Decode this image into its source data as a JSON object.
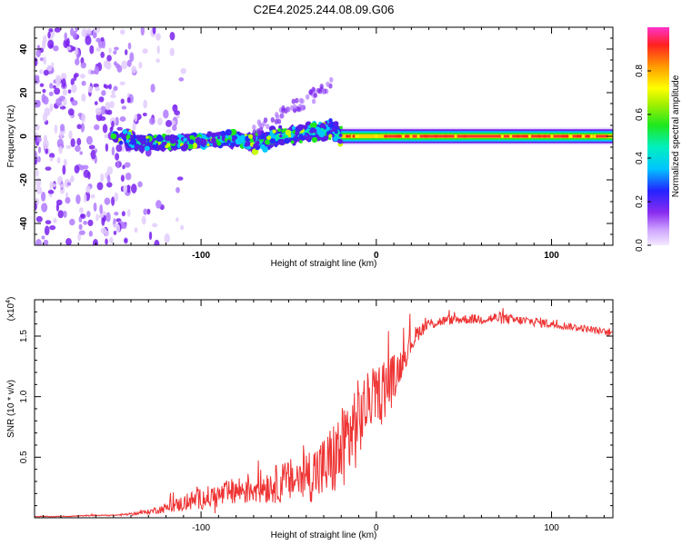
{
  "figure_title": "C2E4.2025.244.08.09.G06",
  "chart_data": [
    {
      "type": "heatmap",
      "title": "C2E4.2025.244.08.09.G06",
      "xlabel": "Height of straight line (km)",
      "ylabel": "Frequency (Hz)",
      "xlim": [
        -195,
        135
      ],
      "ylim": [
        -50,
        50
      ],
      "x_ticks": [
        -100,
        0,
        100
      ],
      "y_ticks": [
        -40,
        -20,
        0,
        20,
        40
      ],
      "colorbar": {
        "label": "Normalized spectral amplitude",
        "range": [
          0,
          1
        ],
        "ticks": [
          0.0,
          0.2,
          0.4,
          0.6,
          0.8
        ]
      },
      "description_points": {
        "noise_region_x": [
          -195,
          -140
        ],
        "signal_center_hz": [
          {
            "x": -140,
            "y": -3
          },
          {
            "x": -120,
            "y": -3
          },
          {
            "x": -100,
            "y": -2
          },
          {
            "x": -80,
            "y": -1
          },
          {
            "x": -70,
            "y": -3
          },
          {
            "x": -60,
            "y": -1
          },
          {
            "x": -45,
            "y": 1
          },
          {
            "x": -30,
            "y": 3
          },
          {
            "x": -25,
            "y": 3
          },
          {
            "x": -20,
            "y": 0
          },
          {
            "x": 0,
            "y": 0
          },
          {
            "x": 60,
            "y": 0
          },
          {
            "x": 135,
            "y": 0
          }
        ]
      }
    },
    {
      "type": "line",
      "title": "",
      "xlabel": "Height of straight line (km)",
      "ylabel": "SNR (10 * v/v)",
      "y_multiplier": "(x10",
      "y_multiplier_exp": "4",
      "y_multiplier_close": ")",
      "xlim": [
        -195,
        135
      ],
      "ylim": [
        0,
        1.8
      ],
      "x_ticks": [
        -100,
        0,
        100
      ],
      "y_ticks": [
        0.5,
        1.0,
        1.5
      ],
      "series": [
        {
          "name": "SNR",
          "color": "#ee3333",
          "x": [
            -195,
            -180,
            -160,
            -150,
            -140,
            -130,
            -120,
            -110,
            -100,
            -90,
            -80,
            -70,
            -60,
            -50,
            -40,
            -30,
            -20,
            -15,
            -10,
            -5,
            0,
            5,
            10,
            15,
            20,
            25,
            30,
            40,
            50,
            60,
            70,
            80,
            90,
            100,
            110,
            120,
            135
          ],
          "y": [
            0.01,
            0.01,
            0.02,
            0.02,
            0.03,
            0.05,
            0.08,
            0.12,
            0.16,
            0.18,
            0.22,
            0.25,
            0.27,
            0.3,
            0.35,
            0.4,
            0.55,
            0.7,
            0.8,
            0.95,
            1.02,
            1.08,
            1.15,
            1.3,
            1.45,
            1.55,
            1.6,
            1.63,
            1.64,
            1.64,
            1.65,
            1.63,
            1.62,
            1.6,
            1.58,
            1.56,
            1.52
          ],
          "noise_amplitude": [
            0.003,
            0.003,
            0.005,
            0.005,
            0.01,
            0.02,
            0.04,
            0.07,
            0.09,
            0.1,
            0.12,
            0.14,
            0.15,
            0.18,
            0.22,
            0.28,
            0.35,
            0.4,
            0.35,
            0.25,
            0.2,
            0.3,
            0.2,
            0.12,
            0.1,
            0.06,
            0.05,
            0.04,
            0.04,
            0.04,
            0.05,
            0.04,
            0.04,
            0.04,
            0.03,
            0.03,
            0.03
          ]
        }
      ]
    }
  ]
}
